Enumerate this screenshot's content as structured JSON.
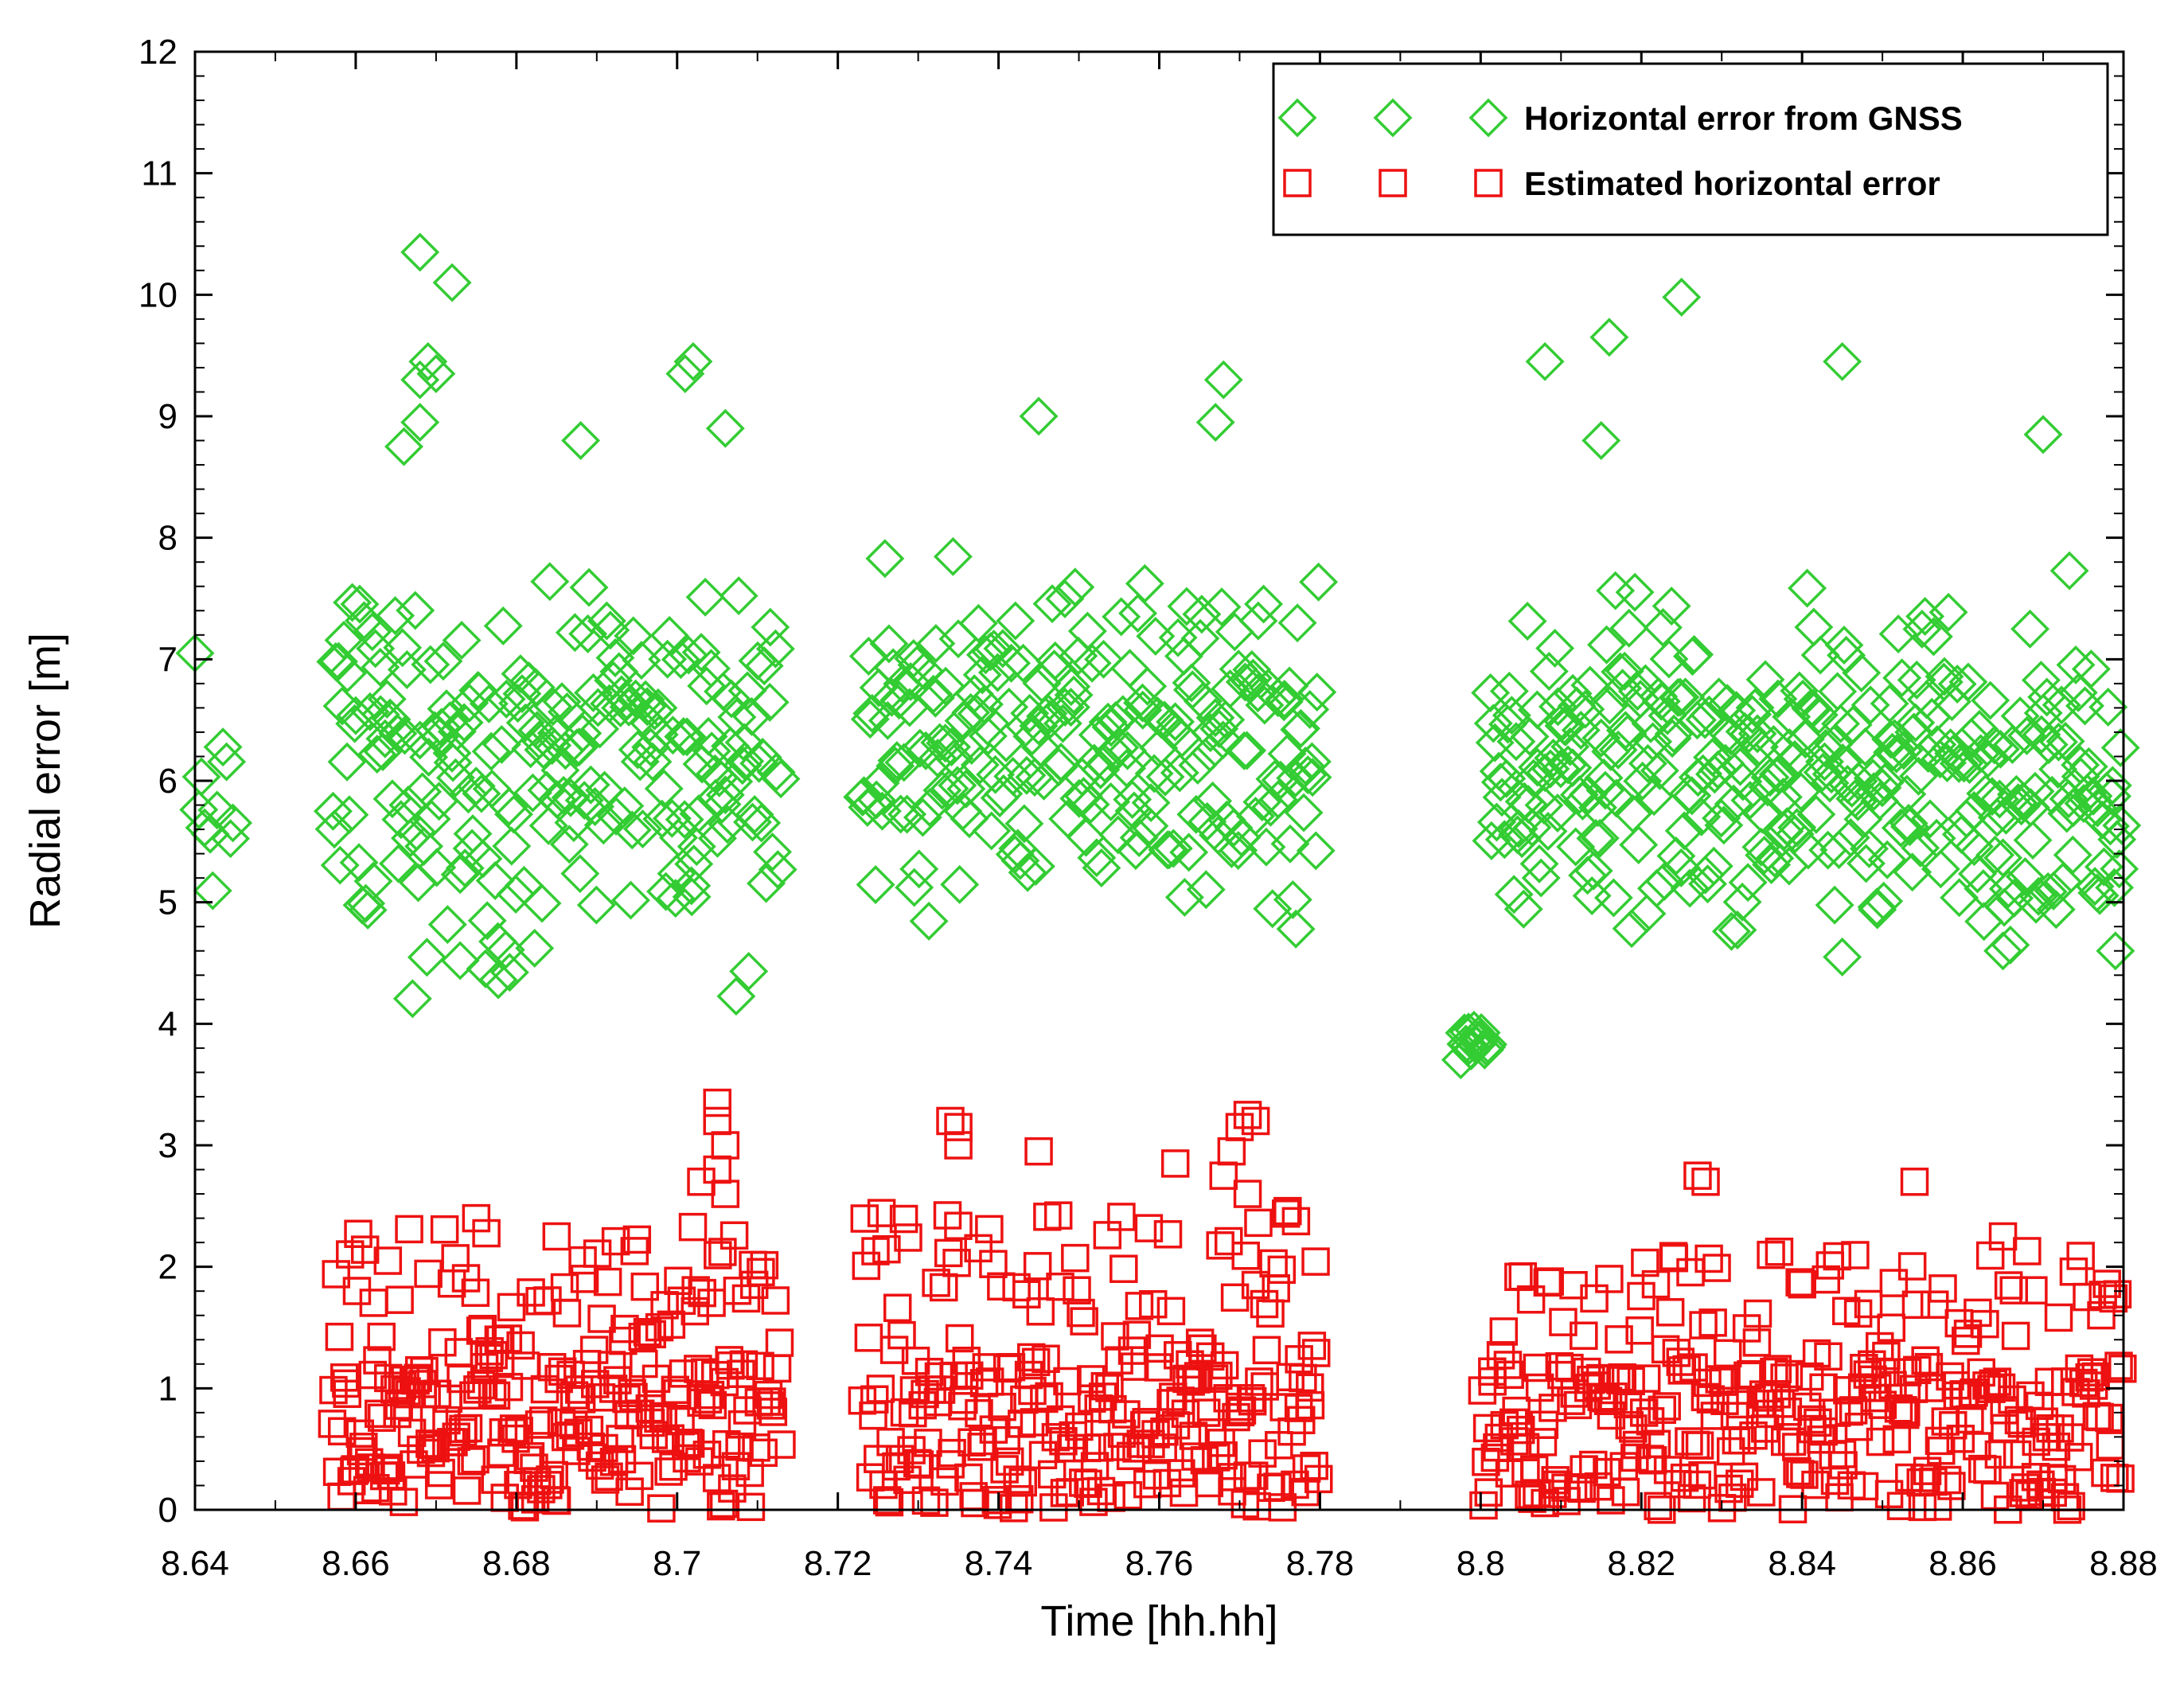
{
  "chart_data": {
    "type": "scatter",
    "xlabel": "Time [hh.hh]",
    "ylabel": "Radial error [m]",
    "xlim": [
      8.64,
      8.88
    ],
    "ylim": [
      0,
      12
    ],
    "x_ticks": [
      "8.64",
      "8.66",
      "8.68",
      "8.7",
      "8.72",
      "8.74",
      "8.76",
      "8.78",
      "8.8",
      "8.82",
      "8.84",
      "8.86",
      "8.88"
    ],
    "y_ticks": [
      "0",
      "1",
      "2",
      "3",
      "4",
      "5",
      "6",
      "7",
      "8",
      "9",
      "10",
      "11",
      "12"
    ],
    "legend_position": "top-right",
    "series": [
      {
        "name": "Horizontal error from GNSS",
        "marker": "diamond",
        "color": "#33cc33",
        "segments": [
          {
            "x_start": 8.64,
            "x_end": 8.645,
            "mean": 5.8,
            "spread": 0.55,
            "count": 10
          },
          {
            "x_start": 8.657,
            "x_end": 8.713,
            "mean": 6.1,
            "spread": 1.25,
            "count": 230
          },
          {
            "x_start": 8.723,
            "x_end": 8.78,
            "mean": 6.3,
            "spread": 1.05,
            "count": 230
          },
          {
            "x_start": 8.7975,
            "x_end": 8.801,
            "mean": 3.88,
            "spread": 0.14,
            "count": 14
          },
          {
            "x_start": 8.801,
            "x_end": 8.88,
            "mean": 6.1,
            "spread": 1.05,
            "count": 340
          }
        ],
        "highlights": [
          {
            "x": 8.668,
            "y": 10.35
          },
          {
            "x": 8.672,
            "y": 10.1
          },
          {
            "x": 8.669,
            "y": 9.45
          },
          {
            "x": 8.668,
            "y": 9.3
          },
          {
            "x": 8.67,
            "y": 9.35
          },
          {
            "x": 8.668,
            "y": 8.95
          },
          {
            "x": 8.666,
            "y": 8.75
          },
          {
            "x": 8.688,
            "y": 8.8
          },
          {
            "x": 8.702,
            "y": 9.45
          },
          {
            "x": 8.701,
            "y": 9.35
          },
          {
            "x": 8.706,
            "y": 8.9
          },
          {
            "x": 8.673,
            "y": 4.52
          },
          {
            "x": 8.64,
            "y": 7.05
          },
          {
            "x": 8.745,
            "y": 9.0
          },
          {
            "x": 8.767,
            "y": 8.95
          },
          {
            "x": 8.768,
            "y": 9.3
          },
          {
            "x": 8.825,
            "y": 9.98
          },
          {
            "x": 8.816,
            "y": 9.65
          },
          {
            "x": 8.808,
            "y": 9.45
          },
          {
            "x": 8.845,
            "y": 9.45
          },
          {
            "x": 8.815,
            "y": 8.8
          },
          {
            "x": 8.87,
            "y": 8.85
          },
          {
            "x": 8.777,
            "y": 4.78
          },
          {
            "x": 8.879,
            "y": 4.6
          },
          {
            "x": 8.865,
            "y": 4.6
          },
          {
            "x": 8.845,
            "y": 4.55
          }
        ]
      },
      {
        "name": "Estimated horizontal error",
        "marker": "square",
        "color": "#ee1111",
        "segments": [
          {
            "x_start": 8.657,
            "x_end": 8.713,
            "mean": 0.85,
            "spread": 1.1,
            "count": 260
          },
          {
            "x_start": 8.723,
            "x_end": 8.78,
            "mean": 1.0,
            "spread": 1.2,
            "count": 240
          },
          {
            "x_start": 8.8,
            "x_end": 8.88,
            "mean": 0.75,
            "spread": 0.95,
            "count": 330
          }
        ],
        "highlights": [
          {
            "x": 8.705,
            "y": 3.35
          },
          {
            "x": 8.705,
            "y": 3.2
          },
          {
            "x": 8.706,
            "y": 3.0
          },
          {
            "x": 8.705,
            "y": 2.8
          },
          {
            "x": 8.706,
            "y": 2.6
          },
          {
            "x": 8.703,
            "y": 2.7
          },
          {
            "x": 8.734,
            "y": 3.2
          },
          {
            "x": 8.735,
            "y": 3.15
          },
          {
            "x": 8.735,
            "y": 3.0
          },
          {
            "x": 8.745,
            "y": 2.95
          },
          {
            "x": 8.762,
            "y": 2.85
          },
          {
            "x": 8.771,
            "y": 3.25
          },
          {
            "x": 8.772,
            "y": 3.2
          },
          {
            "x": 8.77,
            "y": 3.15
          },
          {
            "x": 8.769,
            "y": 2.95
          },
          {
            "x": 8.768,
            "y": 2.75
          },
          {
            "x": 8.771,
            "y": 2.6
          },
          {
            "x": 8.827,
            "y": 2.75
          },
          {
            "x": 8.828,
            "y": 2.7
          },
          {
            "x": 8.854,
            "y": 2.7
          },
          {
            "x": 8.675,
            "y": 2.4
          },
          {
            "x": 8.685,
            "y": 2.25
          },
          {
            "x": 8.664,
            "y": 2.05
          },
          {
            "x": 8.678,
            "y": 1.4
          },
          {
            "x": 8.772,
            "y": 1.85
          },
          {
            "x": 8.779,
            "y": 1.35
          },
          {
            "x": 8.816,
            "y": 1.9
          },
          {
            "x": 8.865,
            "y": 2.25
          }
        ]
      }
    ]
  }
}
